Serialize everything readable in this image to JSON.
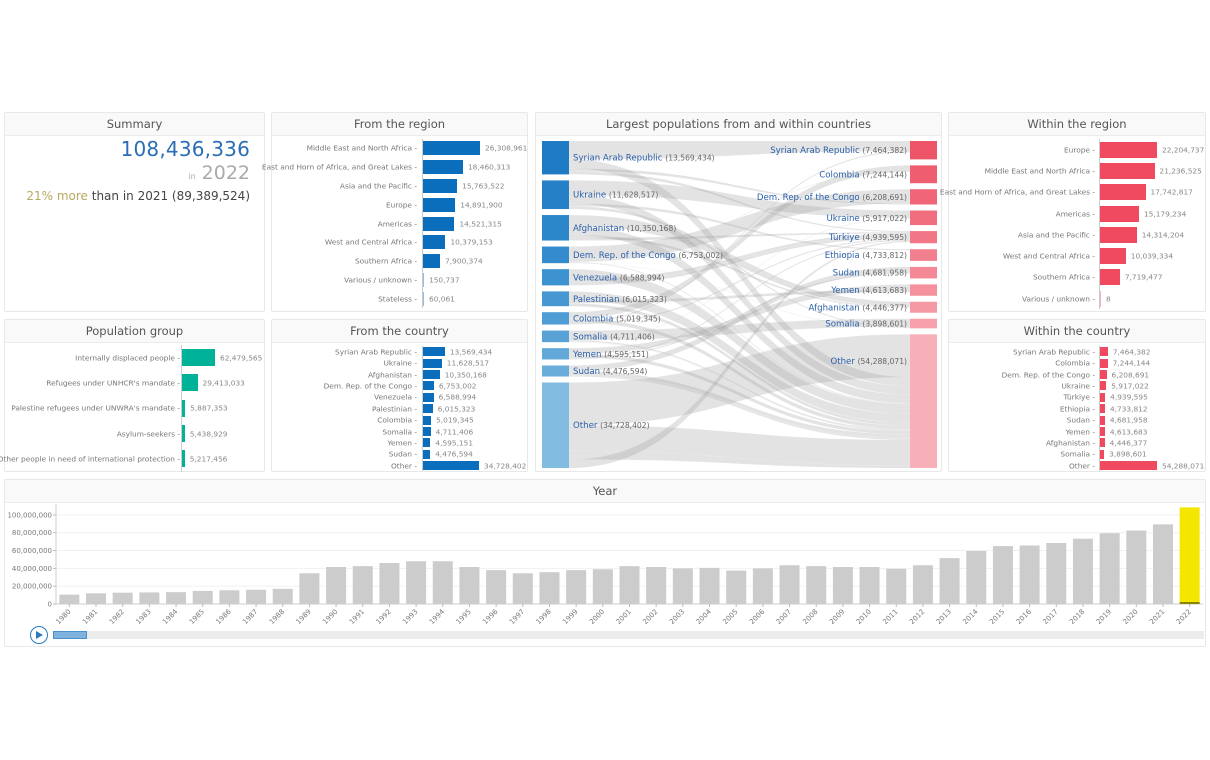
{
  "summary": {
    "title": "Summary",
    "total": "108,436,336",
    "in_label": "in",
    "year": "2022",
    "change_pct": "21% more",
    "change_rest": " than in 2021 (89,389,524)"
  },
  "from_region": {
    "title": "From the region",
    "color": "#0a6ebd",
    "max": 26308961,
    "items": [
      {
        "label": "Middle East and North Africa",
        "value": 26308961,
        "display": "26,308,961"
      },
      {
        "label": "East and Horn of Africa, and Great Lakes",
        "value": 18460313,
        "display": "18,460,313"
      },
      {
        "label": "Asia and the Pacific",
        "value": 15763522,
        "display": "15,763,522"
      },
      {
        "label": "Europe",
        "value": 14891900,
        "display": "14,891,900"
      },
      {
        "label": "Americas",
        "value": 14521315,
        "display": "14,521,315"
      },
      {
        "label": "West and Central Africa",
        "value": 10379153,
        "display": "10,379,153"
      },
      {
        "label": "Southern Africa",
        "value": 7900374,
        "display": "7,900,374"
      },
      {
        "label": "Various / unknown",
        "value": 150737,
        "display": "150,737"
      },
      {
        "label": "Stateless",
        "value": 60061,
        "display": "60,061"
      }
    ]
  },
  "within_region": {
    "title": "Within the region",
    "color": "#ef4a5f",
    "max": 22204737,
    "items": [
      {
        "label": "Europe",
        "value": 22204737,
        "display": "22,204,737"
      },
      {
        "label": "Middle East and North Africa",
        "value": 21236525,
        "display": "21,236,525"
      },
      {
        "label": "East and Horn of Africa, and Great Lakes",
        "value": 17742817,
        "display": "17,742,817"
      },
      {
        "label": "Americas",
        "value": 15179234,
        "display": "15,179,234"
      },
      {
        "label": "Asia and the Pacific",
        "value": 14314204,
        "display": "14,314,204"
      },
      {
        "label": "West and Central Africa",
        "value": 10039334,
        "display": "10,039,334"
      },
      {
        "label": "Southern Africa",
        "value": 7719477,
        "display": "7,719,477"
      },
      {
        "label": "Various / unknown",
        "value": 8,
        "display": "8"
      }
    ]
  },
  "population_group": {
    "title": "Population group",
    "color": "#00b398",
    "max": 62479565,
    "items": [
      {
        "label": "Internally displaced people",
        "value": 62479565,
        "display": "62,479,565"
      },
      {
        "label": "Refugees under UNHCR's mandate",
        "value": 29413033,
        "display": "29,413,033"
      },
      {
        "label": "Palestine refugees under UNWRA's mandate",
        "value": 5887353,
        "display": "5,887,353"
      },
      {
        "label": "Asylum-seekers",
        "value": 5438929,
        "display": "5,438,929"
      },
      {
        "label": "Other people in need of international protection",
        "value": 5217456,
        "display": "5,217,456"
      }
    ]
  },
  "from_country": {
    "title": "From the country",
    "color": "#0a6ebd",
    "max": 34728402,
    "items": [
      {
        "label": "Syrian Arab Republic",
        "value": 13569434,
        "display": "13,569,434"
      },
      {
        "label": "Ukraine",
        "value": 11628517,
        "display": "11,628,517"
      },
      {
        "label": "Afghanistan",
        "value": 10350168,
        "display": "10,350,168"
      },
      {
        "label": "Dem. Rep. of the Congo",
        "value": 6753002,
        "display": "6,753,002"
      },
      {
        "label": "Venezuela",
        "value": 6588994,
        "display": "6,588,994"
      },
      {
        "label": "Palestinian",
        "value": 6015323,
        "display": "6,015,323"
      },
      {
        "label": "Colombia",
        "value": 5019345,
        "display": "5,019,345"
      },
      {
        "label": "Somalia",
        "value": 4711406,
        "display": "4,711,406"
      },
      {
        "label": "Yemen",
        "value": 4595151,
        "display": "4,595,151"
      },
      {
        "label": "Sudan",
        "value": 4476594,
        "display": "4,476,594"
      },
      {
        "label": "Other",
        "value": 34728402,
        "display": "34,728,402"
      }
    ]
  },
  "within_country": {
    "title": "Within the country",
    "color": "#ef4a5f",
    "max": 54288071,
    "items": [
      {
        "label": "Syrian Arab Republic",
        "value": 7464382,
        "display": "7,464,382"
      },
      {
        "label": "Colombia",
        "value": 7244144,
        "display": "7,244,144"
      },
      {
        "label": "Dem. Rep. of the Congo",
        "value": 6208691,
        "display": "6,208,691"
      },
      {
        "label": "Ukraine",
        "value": 5917022,
        "display": "5,917,022"
      },
      {
        "label": "Türkiye",
        "value": 4939595,
        "display": "4,939,595"
      },
      {
        "label": "Ethiopia",
        "value": 4733812,
        "display": "4,733,812"
      },
      {
        "label": "Sudan",
        "value": 4681958,
        "display": "4,681,958"
      },
      {
        "label": "Yemen",
        "value": 4613683,
        "display": "4,613,683"
      },
      {
        "label": "Afghanistan",
        "value": 4446377,
        "display": "4,446,377"
      },
      {
        "label": "Somalia",
        "value": 3898601,
        "display": "3,898,601"
      },
      {
        "label": "Other",
        "value": 54288071,
        "display": "54,288,071"
      }
    ]
  },
  "sankey": {
    "title": "Largest populations from and within countries",
    "label_color": "#2a5fa8",
    "value_color": "#666666",
    "link_color": "#999999",
    "left": [
      {
        "name": "Syrian Arab Republic",
        "value": 13569434,
        "display": "(13,569,434)",
        "color": "#1f7bc4"
      },
      {
        "name": "Ukraine",
        "value": 11628517,
        "display": "(11,628,517)",
        "color": "#2580c7"
      },
      {
        "name": "Afghanistan",
        "value": 10350168,
        "display": "(10,350,168)",
        "color": "#2c86ca"
      },
      {
        "name": "Dem. Rep. of the Congo",
        "value": 6753002,
        "display": "(6,753,002)",
        "color": "#358ccd"
      },
      {
        "name": "Venezuela",
        "value": 6588994,
        "display": "(6,588,994)",
        "color": "#3d92d0"
      },
      {
        "name": "Palestinian",
        "value": 6015323,
        "display": "(6,015,323)",
        "color": "#4697d2"
      },
      {
        "name": "Colombia",
        "value": 5019345,
        "display": "(5,019,345)",
        "color": "#4f9dd4"
      },
      {
        "name": "Somalia",
        "value": 4711406,
        "display": "(4,711,406)",
        "color": "#58a2d6"
      },
      {
        "name": "Yemen",
        "value": 4595151,
        "display": "(4,595,151)",
        "color": "#62a8d9"
      },
      {
        "name": "Sudan",
        "value": 4476594,
        "display": "(4,476,594)",
        "color": "#6badda"
      },
      {
        "name": "Other",
        "value": 34728402,
        "display": "(34,728,402)",
        "color": "#83bce1"
      }
    ],
    "right": [
      {
        "name": "Syrian Arab Republic",
        "value": 7464382,
        "display": "(7,464,382)",
        "color": "#ee5468"
      },
      {
        "name": "Colombia",
        "value": 7244144,
        "display": "(7,244,144)",
        "color": "#ef5d70"
      },
      {
        "name": "Dem. Rep. of the Congo",
        "value": 6208691,
        "display": "(6,208,691)",
        "color": "#f06577"
      },
      {
        "name": "Ukraine",
        "value": 5917022,
        "display": "(5,917,022)",
        "color": "#f16e7f"
      },
      {
        "name": "Türkiye",
        "value": 4939595,
        "display": "(4,939,595)",
        "color": "#f27786"
      },
      {
        "name": "Ethiopia",
        "value": 4733812,
        "display": "(4,733,812)",
        "color": "#f3808e"
      },
      {
        "name": "Sudan",
        "value": 4681958,
        "display": "(4,681,958)",
        "color": "#f48995"
      },
      {
        "name": "Yemen",
        "value": 4613683,
        "display": "(4,613,683)",
        "color": "#f5919c"
      },
      {
        "name": "Afghanistan",
        "value": 4446377,
        "display": "(4,446,377)",
        "color": "#f599a4"
      },
      {
        "name": "Somalia",
        "value": 3898601,
        "display": "(3,898,601)",
        "color": "#f6a1ab"
      },
      {
        "name": "Other",
        "value": 54288071,
        "display": "(54,288,071)",
        "color": "#f7afb8"
      }
    ]
  },
  "year_chart": {
    "title": "Year",
    "play_label": "play",
    "selected_year": "2022",
    "slider_position_fraction": 0.03
  },
  "chart_data": {
    "type": "bar",
    "title": "Year",
    "xlabel": "",
    "ylabel": "",
    "ylim": [
      0,
      110000000
    ],
    "yticks": [
      0,
      20000000,
      40000000,
      60000000,
      80000000,
      100000000
    ],
    "ytick_labels": [
      "0",
      "20,000,000",
      "40,000,000",
      "60,000,000",
      "80,000,000",
      "100,000,000"
    ],
    "grid": true,
    "bar_color": "#cccccc",
    "highlight_color": "#f5e600",
    "highlight_category": "2022",
    "categories": [
      "1980",
      "1981",
      "1982",
      "1983",
      "1984",
      "1985",
      "1986",
      "1987",
      "1988",
      "1989",
      "1990",
      "1991",
      "1992",
      "1993",
      "1994",
      "1995",
      "1996",
      "1997",
      "1998",
      "1999",
      "2000",
      "2001",
      "2002",
      "2003",
      "2004",
      "2005",
      "2006",
      "2007",
      "2008",
      "2009",
      "2010",
      "2011",
      "2012",
      "2013",
      "2014",
      "2015",
      "2016",
      "2017",
      "2018",
      "2019",
      "2020",
      "2021",
      "2022"
    ],
    "values": [
      10500000,
      12000000,
      12700000,
      13000000,
      13300000,
      14700000,
      15400000,
      16000000,
      17000000,
      34500000,
      41500000,
      42500000,
      46000000,
      48000000,
      48000000,
      41500000,
      38000000,
      34500000,
      35700000,
      38000000,
      39000000,
      42500000,
      41500000,
      40000000,
      40500000,
      37500000,
      40000000,
      43500000,
      42500000,
      41500000,
      41500000,
      39500000,
      43500000,
      51500000,
      59500000,
      65000000,
      65700000,
      68500000,
      73300000,
      79500000,
      82400000,
      89389524,
      108436336
    ]
  }
}
